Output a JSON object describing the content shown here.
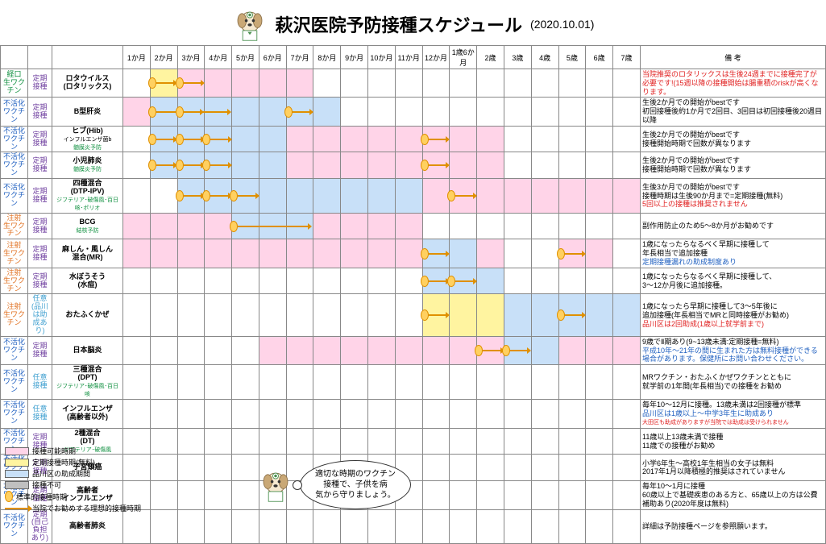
{
  "header": {
    "title": "萩沢医院予防接種スケジュール",
    "date": "(2020.10.01)"
  },
  "months": [
    "1か月",
    "2か月",
    "3か月",
    "4か月",
    "5か月",
    "6か月",
    "7か月",
    "8か月",
    "9か月",
    "10か月",
    "11か月",
    "12か月",
    "1歳6か月",
    "2歳",
    "3歳",
    "4歳",
    "5歳",
    "6歳",
    "7歳"
  ],
  "remark_header": "備 考",
  "rows": [
    {
      "type": "経口\n生ワクチン",
      "type_cls": "green",
      "sched": "定期\n接種",
      "sched_cls": "purple",
      "name": "ロタウイルス\n(ロタリックス)",
      "sub": "",
      "tall": true,
      "bg": {
        "pink": [
          1,
          7
        ],
        "yellow": [
          1,
          1.5
        ]
      },
      "doses": [
        2,
        3
      ],
      "arrows": [
        [
          2,
          3
        ],
        [
          3,
          4
        ]
      ],
      "remark": "<span class='red'>当院推奨のロタリックスは生後24週までに接種完了が必要です!(15週以降の接種開始は腸重積のriskが高くなります。</span>"
    },
    {
      "type": "不活化\nワクチン",
      "type_cls": "blue",
      "sched": "定期\n接種",
      "sched_cls": "purple",
      "name": "B型肝炎",
      "sub": "",
      "tall": true,
      "bg": {
        "pink": [
          0,
          8
        ],
        "blue": [
          1,
          8
        ]
      },
      "doses": [
        2,
        3,
        7
      ],
      "arrows": [
        [
          2,
          4
        ],
        [
          3,
          5
        ],
        [
          7,
          8
        ]
      ],
      "remark": "生後2か月での開始がbestです\n初回接種後約1か月で2回目、3回目は初回接種後20週目以降"
    },
    {
      "type": "不活化\nワクチン",
      "type_cls": "blue",
      "sched": "定期\n接種",
      "sched_cls": "purple",
      "name": "ヒブ(Hib)",
      "sub": "<span class='small'>インフルエンザ菌b</span>\n<span class='green small'>髄膜炎予防</span>",
      "tall": true,
      "bg": {
        "pink": [
          1,
          11
        ],
        "blue": [
          1,
          6
        ],
        "pink2": [
          11,
          13.5
        ]
      },
      "doses": [
        2,
        3,
        4,
        12
      ],
      "arrows": [
        [
          2,
          3
        ],
        [
          3,
          4
        ],
        [
          4,
          5
        ],
        [
          12,
          13
        ]
      ],
      "remark": "生後2か月での開始がbestです\n接種開始時期で回数が異なります"
    },
    {
      "type": "不活化\nワクチン",
      "type_cls": "blue",
      "sched": "定期\n接種",
      "sched_cls": "purple",
      "name": "小児肺炎",
      "sub": "<span class='green small'>髄膜炎予防</span>",
      "tall": true,
      "bg": {
        "pink": [
          1,
          11
        ],
        "blue": [
          1,
          6
        ],
        "pink2": [
          11,
          13.5
        ]
      },
      "doses": [
        2,
        3,
        4,
        12
      ],
      "arrows": [
        [
          2,
          3
        ],
        [
          3,
          4
        ],
        [
          4,
          5
        ],
        [
          12,
          13
        ]
      ],
      "remark": "生後2か月での開始がbestです\n接種開始時期で回数が異なります"
    },
    {
      "type": "不活化\nワクチン",
      "type_cls": "blue",
      "sched": "定期\n接種",
      "sched_cls": "purple",
      "name": "四種混合\n(DTP-IPV)",
      "sub": "<span class='green small'>ジフテリア･破傷風･百日咳･ポリオ</span>",
      "tall": true,
      "bg": {
        "pink": [
          2,
          11
        ],
        "blue": [
          2,
          11
        ],
        "pink2": [
          11,
          19
        ]
      },
      "doses": [
        3,
        4,
        5,
        13
      ],
      "arrows": [
        [
          3,
          4
        ],
        [
          4,
          5
        ],
        [
          5,
          6
        ],
        [
          13,
          14
        ]
      ],
      "remark": "生後3か月での開始がbestです\n接種時期は生後90か月まで=定期接種(無料)\n<span class='red'>5回以上の接種は推奨されません</span>"
    },
    {
      "type": "注射\n生ワクチン",
      "type_cls": "orange",
      "sched": "定期\n接種",
      "sched_cls": "purple",
      "name": "BCG",
      "sub": "<span class='green small'>結核予防</span>",
      "tall": true,
      "bg": {
        "pink": [
          0,
          11
        ],
        "blue": [
          4,
          7
        ]
      },
      "doses": [
        5
      ],
      "arrows": [
        [
          5,
          8
        ]
      ],
      "remark": "副作用防止のため5～8か月がお勧めです"
    },
    {
      "type": "注射\n生ワクチン",
      "type_cls": "orange",
      "sched": "定期\n接種",
      "sched_cls": "purple",
      "name": "麻しん・風しん\n混合(MR)",
      "sub": "",
      "tall": true,
      "bg": {
        "pink": [
          0,
          13.5
        ],
        "blue": [
          11,
          13
        ],
        "pink2": [
          16,
          18
        ]
      },
      "doses": [
        12,
        17
      ],
      "arrows": [
        [
          12,
          13
        ],
        [
          17,
          18
        ]
      ],
      "remark": "1歳になったらなるべく早期に接種して\n年長相当で追加接種\n<span class='blue'>定期接種漏れの助成制度あり</span>"
    },
    {
      "type": "注射\n生ワクチン",
      "type_cls": "orange",
      "sched": "定期\n接種",
      "sched_cls": "purple",
      "name": "水ぼうそう\n(水痘)",
      "sub": "",
      "tall": true,
      "bg": {
        "pink": [
          11,
          14
        ],
        "blue": [
          11,
          14
        ]
      },
      "doses": [
        12,
        13
      ],
      "arrows": [
        [
          12,
          13
        ],
        [
          13,
          14
        ]
      ],
      "remark": "1歳になったらなるべく早期に接種して、\n3～12か月後に追加接種。"
    },
    {
      "type": "注射\n生ワクチン",
      "type_cls": "orange",
      "sched": "任意\n(品川は助成あり)",
      "sched_cls": "cyan",
      "name": "おたふくかぜ",
      "sub": "",
      "tall": true,
      "bg": {
        "blue": [
          11,
          19
        ],
        "yellow": [
          11,
          14
        ]
      },
      "doses": [
        12,
        17
      ],
      "arrows": [
        [
          12,
          13
        ],
        [
          17,
          18
        ]
      ],
      "remark": "1歳になったら早期に接種して3～5年後に\n追加接種(年長相当でMRと同時接種がお勧め)\n<span class='red'>品川区は2回助成(1歳以上就学前まで)</span>"
    },
    {
      "type": "不活化\nワクチン",
      "type_cls": "blue",
      "sched": "定期\n接種",
      "sched_cls": "purple",
      "name": "日本脳炎",
      "sub": "",
      "tall": true,
      "bg": {
        "pink": [
          5,
          19
        ],
        "blue": [
          14,
          16
        ]
      },
      "doses": [
        14,
        14.5,
        15
      ],
      "arrows": [
        [
          14,
          15
        ],
        [
          15,
          16
        ]
      ],
      "remark": "9歳でⅡ期あり(9~13歳未満:定期接種=無料)\n<span class='blue'>平成10年～21年の間に生まれた方は無料接種ができる場合があります。保健所にお問い合わせください。</span>"
    },
    {
      "type": "不活化\nワクチン",
      "type_cls": "blue",
      "sched": "任意\n接種",
      "sched_cls": "cyan",
      "name": "三種混合\n(DPT)",
      "sub": "<span class='green small'>ジフテリア･破傷風･百日咳</span>",
      "tall": true,
      "bg": {},
      "doses": [],
      "arrows": [],
      "remark": "MRワクチン・おたふくかぜワクチンとともに\n就学前の1年間(年長相当)での接種をお勧め"
    },
    {
      "type": "不活化\nワクチン",
      "type_cls": "blue",
      "sched": "任意\n接種",
      "sched_cls": "cyan",
      "name": "インフルエンザ\n(高齢者以外)",
      "sub": "",
      "tall": true,
      "bg": {},
      "doses": [],
      "arrows": [],
      "remark": "毎年10～12月に接種。13歳未満は2回接種が標準\n<span class='blue'>品川区は1歳以上～中学3年生に助成あり</span>\n<span class='red small'>大田区も助成がありますが当院では助成は受けられません</span>"
    },
    {
      "type": "不活化\nワクチン",
      "type_cls": "blue",
      "sched": "定期\n接種",
      "sched_cls": "purple",
      "name": "2種混合\n(DT)",
      "sub": "<span class='green small'>ジフテリア･破傷風</span>",
      "tall": true,
      "bg": {},
      "doses": [],
      "arrows": [],
      "remark": "11歳以上13歳未満で接種\n11歳での接種がお勧め"
    },
    {
      "type": "不活化\nワクチン",
      "type_cls": "blue",
      "sched": "定期\n接種",
      "sched_cls": "purple",
      "name": "子宮頸癌",
      "sub": "",
      "tall": false,
      "bg": {},
      "doses": [],
      "arrows": [],
      "remark": "小学6年生～高校1年生相当の女子は無料\n2017年1月以降積極的推奨はされていません"
    },
    {
      "type": "不活化\nワクチン",
      "type_cls": "blue",
      "sched": "定期\n接種",
      "sched_cls": "purple",
      "name": "高齢者\nインフルエンザ",
      "sub": "",
      "tall": true,
      "bg": {},
      "doses": [],
      "arrows": [],
      "remark": "毎年10～1月に接種\n60歳以上で基礎疾患のある方と、65歳以上の方は公費補助あり(2020年度は無料)"
    },
    {
      "type": "不活化\nワクチン",
      "type_cls": "blue",
      "sched": "定期\n(自己負担あり)",
      "sched_cls": "purple",
      "name": "高齢者肺炎",
      "sub": "",
      "tall": true,
      "bg": {},
      "doses": [],
      "arrows": [],
      "remark": "詳細は予防接種ページを参照願います。"
    }
  ],
  "legend": [
    {
      "sw": "bg-pink",
      "label": "接種可能時期"
    },
    {
      "sw": "bg-yellow",
      "label": "定期接種時期(無料)"
    },
    {
      "sw": "bg-blue",
      "label": "品川区の助成期間"
    },
    {
      "sw": "bg-gray",
      "label": "接種不可"
    },
    {
      "sw": "dose",
      "label": "標準的接種時期"
    },
    {
      "sw": "arrow",
      "label": "当院でお勧めする理想的接種時期"
    }
  ],
  "speech": "適切な時期のワクチン\n接種で、子供を病\n気から守りましょう。"
}
